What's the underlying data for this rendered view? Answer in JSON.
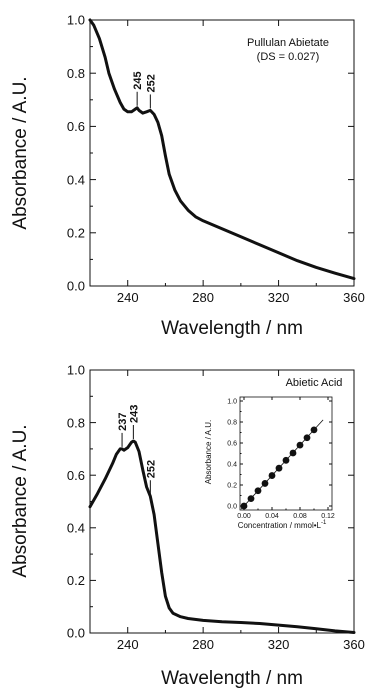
{
  "chart_data": [
    {
      "type": "line",
      "annotation": [
        "Pullulan Abietate",
        "(DS = 0.027)"
      ],
      "xlabel": "Wavelength / nm",
      "ylabel": "Absorbance / A.U.",
      "xlim": [
        220,
        360
      ],
      "ylim": [
        0,
        1.0
      ],
      "xticks": [
        240,
        280,
        320,
        360
      ],
      "yticks": [
        0.0,
        0.2,
        0.4,
        0.6,
        0.8,
        1.0
      ],
      "xtick_labels": [
        "240",
        "280",
        "320",
        "360"
      ],
      "ytick_labels": [
        "0.0",
        "0.2",
        "0.4",
        "0.6",
        "0.8",
        "1.0"
      ],
      "peak_labels": [
        {
          "label": "245",
          "x": 245,
          "y": 0.67
        },
        {
          "label": "252",
          "x": 252,
          "y": 0.66
        }
      ],
      "series": [
        {
          "x": [
            220,
            222,
            225,
            228,
            230,
            233,
            236,
            238,
            240,
            242,
            244,
            245,
            246,
            248,
            250,
            252,
            254,
            256,
            258,
            260,
            262,
            265,
            268,
            272,
            276,
            280,
            290,
            300,
            310,
            320,
            330,
            340,
            350,
            360
          ],
          "y": [
            1.0,
            0.98,
            0.93,
            0.86,
            0.8,
            0.74,
            0.69,
            0.665,
            0.655,
            0.655,
            0.665,
            0.67,
            0.66,
            0.65,
            0.655,
            0.66,
            0.645,
            0.615,
            0.565,
            0.49,
            0.42,
            0.36,
            0.32,
            0.285,
            0.26,
            0.245,
            0.215,
            0.185,
            0.155,
            0.125,
            0.095,
            0.07,
            0.048,
            0.028
          ]
        }
      ]
    },
    {
      "type": "line",
      "annotation": [
        "Abietic Acid"
      ],
      "xlabel": "Wavelength / nm",
      "ylabel": "Absorbance / A.U.",
      "xlim": [
        220,
        360
      ],
      "ylim": [
        0,
        1.0
      ],
      "xticks": [
        240,
        280,
        320,
        360
      ],
      "yticks": [
        0.0,
        0.2,
        0.4,
        0.6,
        0.8,
        1.0
      ],
      "xtick_labels": [
        "240",
        "280",
        "320",
        "360"
      ],
      "ytick_labels": [
        "0.0",
        "0.2",
        "0.4",
        "0.6",
        "0.8",
        "1.0"
      ],
      "peak_labels": [
        {
          "label": "237",
          "x": 237,
          "y": 0.7
        },
        {
          "label": "243",
          "x": 243,
          "y": 0.73
        },
        {
          "label": "252",
          "x": 252,
          "y": 0.52
        }
      ],
      "series": [
        {
          "x": [
            220,
            224,
            228,
            232,
            234,
            236,
            237,
            238,
            240,
            242,
            243,
            244,
            246,
            248,
            250,
            252,
            254,
            256,
            258,
            260,
            262,
            264,
            268,
            272,
            280,
            290,
            300,
            310,
            320,
            330,
            340,
            350,
            360
          ],
          "y": [
            0.48,
            0.53,
            0.585,
            0.645,
            0.68,
            0.7,
            0.7,
            0.695,
            0.705,
            0.725,
            0.73,
            0.725,
            0.69,
            0.62,
            0.555,
            0.52,
            0.45,
            0.34,
            0.23,
            0.14,
            0.095,
            0.075,
            0.062,
            0.055,
            0.048,
            0.043,
            0.04,
            0.036,
            0.03,
            0.024,
            0.016,
            0.008,
            0.002
          ]
        }
      ]
    },
    {
      "type": "scatter",
      "xlabel": "Concentration / mmol•L",
      "xlabel_sup": "-1",
      "ylabel": "Absorbance / A.U.",
      "xlim": [
        0,
        0.12
      ],
      "ylim": [
        0,
        1.0
      ],
      "xticks": [
        0.0,
        0.04,
        0.08,
        0.12
      ],
      "yticks": [
        0.0,
        0.2,
        0.4,
        0.6,
        0.8,
        1.0
      ],
      "xtick_labels": [
        "0.00",
        "0.04",
        "0.08",
        "0.12"
      ],
      "ytick_labels": [
        "0.0",
        "0.2",
        "0.4",
        "0.6",
        "0.8",
        "1.0"
      ],
      "series": [
        {
          "x": [
            0.0,
            0.01,
            0.02,
            0.03,
            0.04,
            0.05,
            0.06,
            0.07,
            0.08,
            0.09,
            0.1
          ],
          "y": [
            0.0,
            0.07,
            0.145,
            0.215,
            0.29,
            0.36,
            0.435,
            0.505,
            0.58,
            0.65,
            0.725
          ]
        }
      ],
      "fit_line": {
        "x": [
          -0.004,
          0.113
        ],
        "y": [
          -0.029,
          0.82
        ]
      }
    }
  ]
}
